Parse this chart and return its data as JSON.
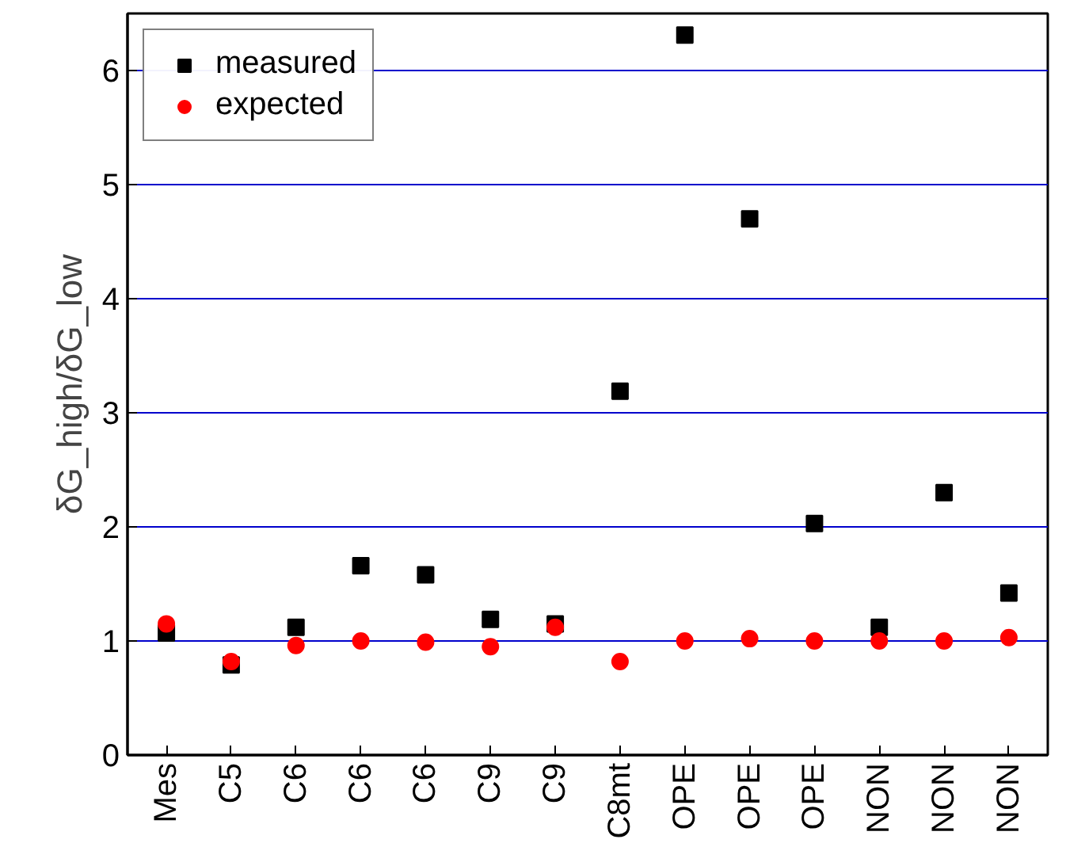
{
  "chart_data": {
    "type": "scatter",
    "ylabel": "δG_high/δG_low",
    "categories": [
      "Mes",
      "C5",
      "C6",
      "C6",
      "C6",
      "C9",
      "C9",
      "C8mt",
      "OPE",
      "OPE",
      "OPE",
      "NON",
      "NON",
      "NON"
    ],
    "series": [
      {
        "name": "measured",
        "color": "#000000",
        "marker": "square",
        "values": [
          1.07,
          0.79,
          1.12,
          1.66,
          1.58,
          1.19,
          1.15,
          3.19,
          6.31,
          4.7,
          2.03,
          1.12,
          2.3,
          1.42
        ]
      },
      {
        "name": "expected",
        "color": "#ff0000",
        "marker": "circle",
        "values": [
          1.15,
          0.82,
          0.96,
          1.0,
          0.99,
          0.95,
          1.12,
          0.82,
          1.0,
          1.02,
          1.0,
          1.0,
          1.0,
          1.03
        ]
      }
    ],
    "ylim": [
      0,
      6.5
    ],
    "yticks": [
      0,
      1,
      2,
      3,
      4,
      5,
      6
    ],
    "grid": "y",
    "legend": "top left"
  }
}
